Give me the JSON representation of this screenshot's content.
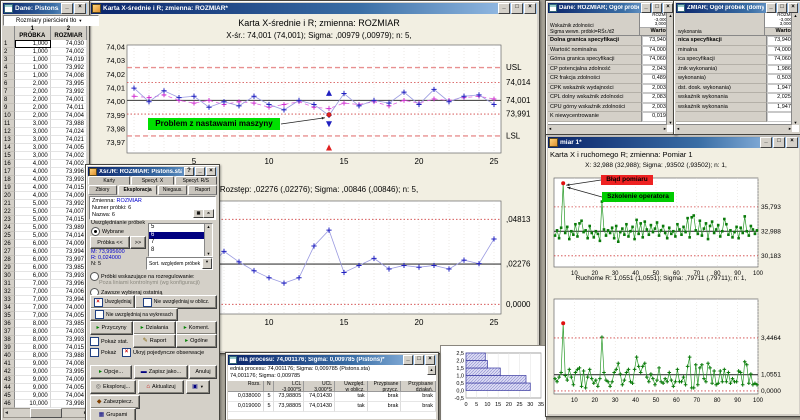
{
  "icons": {
    "minimize": "_",
    "maximize": "□",
    "close": "×",
    "help": "?",
    "up_arrow": "▲",
    "down_arrow": "▼",
    "left_arrow": "◄",
    "right_arrow": "►",
    "dropdown_arrow": "▼",
    "green_action": "▸",
    "pencil": "✎",
    "disk": "▬",
    "update": "⌂",
    "explore": "◎",
    "lock": "◆",
    "check": "×"
  },
  "colors": {
    "titlebar": "#0a246a",
    "series_blue": "#2020c0",
    "series_magenta": "#d030d0",
    "series_green": "#0a7a0a",
    "limit_red": "#d04040",
    "spec_red": "#e89090",
    "annotation_green": "#00e000",
    "annotation_red": "#ee2222"
  },
  "data_window": {
    "title": "Dane: Pistons.sta ...",
    "sheet_header": "Rozmiary pierścieni tło",
    "columns": [
      {
        "num": "1",
        "name": "PRÓBKA"
      },
      {
        "num": "2",
        "name": "ROZMIAR"
      }
    ],
    "rows": [
      [
        "1",
        "1,000",
        "74,030"
      ],
      [
        "2",
        "1,000",
        "74,002"
      ],
      [
        "3",
        "1,000",
        "74,019"
      ],
      [
        "4",
        "1,000",
        "73,992"
      ],
      [
        "5",
        "1,000",
        "74,008"
      ],
      [
        "6",
        "2,000",
        "73,995"
      ],
      [
        "7",
        "2,000",
        "73,992"
      ],
      [
        "8",
        "2,000",
        "74,001"
      ],
      [
        "9",
        "2,000",
        "74,011"
      ],
      [
        "10",
        "2,000",
        "74,004"
      ],
      [
        "11",
        "3,000",
        "73,988"
      ],
      [
        "12",
        "3,000",
        "74,024"
      ],
      [
        "13",
        "3,000",
        "74,021"
      ],
      [
        "14",
        "3,000",
        "74,005"
      ],
      [
        "15",
        "3,000",
        "74,002"
      ],
      [
        "16",
        "4,000",
        "74,002"
      ],
      [
        "17",
        "4,000",
        "73,996"
      ],
      [
        "18",
        "4,000",
        "73,993"
      ],
      [
        "19",
        "4,000",
        "74,015"
      ],
      [
        "20",
        "4,000",
        "74,009"
      ],
      [
        "21",
        "5,000",
        "73,992"
      ],
      [
        "22",
        "5,000",
        "74,007"
      ],
      [
        "23",
        "5,000",
        "74,015"
      ],
      [
        "24",
        "5,000",
        "73,989"
      ],
      [
        "25",
        "5,000",
        "74,014"
      ],
      [
        "26",
        "6,000",
        "74,009"
      ],
      [
        "27",
        "6,000",
        "73,994"
      ],
      [
        "28",
        "6,000",
        "73,997"
      ],
      [
        "29",
        "6,000",
        "73,985"
      ],
      [
        "30",
        "6,000",
        "73,993"
      ],
      [
        "31",
        "7,000",
        "73,996"
      ],
      [
        "32",
        "7,000",
        "74,006"
      ],
      [
        "33",
        "7,000",
        "73,994"
      ],
      [
        "34",
        "7,000",
        "74,000"
      ],
      [
        "35",
        "7,000",
        "74,005"
      ],
      [
        "36",
        "8,000",
        "73,985"
      ],
      [
        "37",
        "8,000",
        "74,003"
      ],
      [
        "38",
        "8,000",
        "73,993"
      ],
      [
        "39",
        "8,000",
        "74,015"
      ],
      [
        "40",
        "8,000",
        "73,988"
      ],
      [
        "41",
        "9,000",
        "74,008"
      ],
      [
        "42",
        "9,000",
        "73,995"
      ],
      [
        "43",
        "9,000",
        "74,009"
      ],
      [
        "44",
        "9,000",
        "74,005"
      ],
      [
        "45",
        "9,000",
        "74,004"
      ],
      [
        "46",
        "10,000",
        "73,998"
      ]
    ]
  },
  "main_chart_window": {
    "title": "Karta X-średnie i R; zmienna:  ROZMIAR*"
  },
  "mr_window": {
    "title": "miar 1*"
  },
  "chart_data": [
    {
      "type": "line",
      "id": "xbar",
      "title": "Karta X-średnie i R; zmienna:  ROZMIAR",
      "subtitle": "X-śr.: 74,001 (74,001); Sigma: ,00979 (,00979); n: 5,",
      "annotation": "Problem z nastawami maszyny",
      "yticks": [
        "74,04",
        "74,03",
        "74,02",
        "74,01",
        "74,00",
        "73,99",
        "73,98",
        "73,97"
      ],
      "ytick_values": [
        74.04,
        74.03,
        74.02,
        74.01,
        74.0,
        73.99,
        73.98,
        73.97
      ],
      "xticks": [
        5,
        10,
        15,
        20,
        25
      ],
      "ylim": [
        73.9625,
        74.0415
      ],
      "lines": [
        {
          "label": "USL",
          "value": 74.025,
          "style": "dash"
        },
        {
          "label": "74,014",
          "value": 74.014,
          "style": "dot"
        },
        {
          "label": "74,001",
          "value": 74.001,
          "style": "solid"
        },
        {
          "label": "73,991",
          "value": 73.991,
          "style": "dot"
        },
        {
          "label": "LSL",
          "value": 73.975,
          "style": "dash"
        }
      ],
      "series": [
        {
          "name": "X-średnie",
          "values": [
            74.01,
            74.0,
            74.008,
            74.003,
            74.004,
            73.996,
            74.0,
            73.997,
            74.004,
            73.998,
            73.994,
            74.001,
            73.998,
            73.99,
            74.006,
            73.997,
            74.001,
            73.999,
            74.007,
            73.998,
            74.009,
            74.0,
            74.004,
            74.005,
            73.998
          ]
        },
        {
          "name": "X-średnie (przeliczone)",
          "values": [
            74.004,
            74.003,
            74.005,
            74.001,
            73.999,
            74.001,
            73.998,
            74.0,
            73.999,
            73.996,
            73.998,
            74.0,
            73.996,
            73.995,
            73.999,
            73.998,
            74.0,
            73.997,
            74.001,
            73.999,
            74.002,
            74.001,
            74.003,
            74.004,
            74.002
          ]
        }
      ],
      "outlier": {
        "sample": 14,
        "value": 73.9905
      },
      "flags": [
        {
          "sample": 14,
          "value": 74.0065,
          "marker": "tri-up",
          "color": "blue"
        },
        {
          "sample": 14,
          "value": 73.9835,
          "marker": "tri-down",
          "color": "blue"
        },
        {
          "sample": 14,
          "value": 73.9665,
          "marker": "tri-up",
          "color": "red"
        }
      ]
    },
    {
      "type": "line",
      "id": "rchart",
      "subtitle": "Rozstęp: ,02276 (,02276); Sigma: ,00846 (,00846); n: 5,",
      "xticks": [
        5,
        10,
        15,
        20,
        25
      ],
      "ylim": [
        -0.0055,
        0.0585
      ],
      "lines": [
        {
          "label": ",04813",
          "value": 0.04813,
          "style": "dot"
        },
        {
          "label": ",02276",
          "value": 0.02276,
          "style": "solid"
        },
        {
          "label": "0,0000",
          "value": 0.0,
          "style": "dot"
        }
      ],
      "values": [
        0.025,
        0.031,
        0.022,
        0.018,
        0.028,
        0.021,
        0.03,
        0.024,
        0.019,
        0.015,
        0.012,
        0.015,
        0.033,
        0.042,
        0.018,
        0.022,
        0.026,
        0.02,
        0.022,
        0.021,
        0.022,
        0.02,
        0.025,
        0.023,
        0.037
      ]
    },
    {
      "type": "line",
      "id": "individuals",
      "title": "Karta X i ruchomego R; zmienna:  Pomiar 1",
      "subtitle": "X: 32,988 (32,988); Sigma: ,93502 (,93502); n: 1,",
      "annotations": [
        {
          "text": "Błąd pomiaru",
          "bg": "red"
        },
        {
          "text": "Szkolenie operatora",
          "bg": "green"
        }
      ],
      "xticks": [
        10,
        20,
        30,
        40,
        50,
        60,
        70,
        80,
        90,
        100
      ],
      "ylim": [
        28.9,
        39.1
      ],
      "lines": [
        {
          "label": "35,793",
          "value": 35.793,
          "style": "dot"
        },
        {
          "label": "32,988",
          "value": 32.988,
          "style": "solid"
        },
        {
          "label": "30,183",
          "value": 30.183,
          "style": "dot"
        }
      ],
      "red_point_index": 4,
      "values": [
        32.5,
        33.1,
        32.2,
        33.4,
        38.5,
        32.8,
        33.5,
        32.1,
        33.0,
        32.6,
        33.8,
        32.4,
        33.9,
        34.2,
        32.9,
        33.1,
        32.2,
        33.6,
        32.8,
        32.3,
        33.0,
        32.7,
        31.9,
        36.4,
        33.2,
        32.5,
        33.1,
        32.8,
        33.4,
        32.2,
        33.6,
        31.8,
        32.9,
        33.3,
        32.6,
        33.8,
        32.4,
        33.0,
        33.5,
        32.1,
        34.3,
        32.7,
        33.9,
        32.3,
        34.1,
        33.2,
        32.6,
        33.7,
        32.9,
        33.3,
        34.0,
        32.5,
        33.1,
        33.6,
        32.8,
        32.2,
        33.4,
        32.7,
        33.0,
        32.4,
        33.8,
        33.2,
        32.6,
        33.5,
        32.9,
        34.5,
        32.3,
        34.6,
        34.8,
        33.1,
        32.7,
        34.2,
        32.5,
        33.3,
        33.9,
        32.1,
        33.6,
        34.1,
        32.8,
        33.2,
        33.7,
        32.4,
        33.0,
        34.4,
        33.8,
        32.6,
        33.1,
        32.3,
        32.9,
        33.5,
        32.2,
        33.4,
        32.8,
        34.7,
        33.0,
        32.5,
        33.6,
        33.2,
        32.7,
        33.1
      ]
    },
    {
      "type": "line",
      "id": "moving_r",
      "title": "Ruchome R: 1,0551 (1,0551); Sigma: ,79711 (,79711); n: 1,",
      "xticks": [
        10,
        20,
        30,
        40,
        50,
        60,
        70,
        80,
        90,
        100
      ],
      "ylim": [
        -0.2,
        5.98
      ],
      "lines": [
        {
          "label": "3,4464",
          "value": 3.4464,
          "style": "dot"
        },
        {
          "label": "1,0551",
          "value": 1.0551,
          "style": "solid"
        },
        {
          "label": "0,0000",
          "value": 0.0,
          "style": "dot"
        }
      ],
      "red_point_index": 4,
      "values": [
        0.8,
        0.6,
        0.9,
        1.2,
        4.4,
        1.0,
        0.7,
        1.4,
        0.9,
        0.4,
        1.2,
        1.4,
        1.5,
        0.3,
        1.3,
        0.2,
        0.9,
        1.4,
        0.8,
        0.5,
        0.7,
        0.3,
        0.8,
        3.5,
        1.2,
        0.7,
        0.6,
        0.3,
        0.6,
        1.2,
        1.4,
        1.8,
        1.1,
        0.4,
        0.7,
        1.2,
        1.4,
        0.6,
        0.5,
        1.4,
        2.2,
        1.6,
        1.2,
        1.6,
        1.8,
        0.9,
        0.6,
        1.1,
        0.8,
        0.4,
        0.7,
        1.5,
        0.6,
        0.5,
        0.8,
        0.6,
        1.2,
        0.7,
        0.3,
        0.6,
        1.4,
        0.6,
        0.6,
        0.9,
        0.4,
        1.6,
        2.2,
        0.2,
        0.2,
        1.7,
        0.4,
        1.5,
        1.7,
        0.8,
        0.6,
        1.8,
        1.5,
        0.5,
        1.3,
        0.4,
        0.5,
        1.3,
        0.6,
        1.4,
        0.6,
        1.2,
        0.5,
        0.8,
        0.6,
        0.6,
        1.3,
        1.2,
        0.4,
        1.9,
        1.7,
        0.5,
        1.1,
        0.4,
        0.5,
        0.4
      ]
    },
    {
      "type": "bar",
      "id": "histogram",
      "orientation": "horizontal",
      "bin_edges": [
        0,
        0.5,
        1.0,
        1.5,
        2.0,
        2.5
      ],
      "counts": [
        30,
        28,
        16,
        10,
        9
      ],
      "xticks": [
        0,
        5,
        10,
        15,
        20,
        25,
        30,
        35
      ],
      "yticks": [
        "2,5",
        "2,0",
        "1,5",
        "1,0",
        "0,5",
        "0,0",
        "-0,5"
      ],
      "ytick_values": [
        2.5,
        2.0,
        1.5,
        1.0,
        0.5,
        0.0,
        -0.5
      ],
      "xlim": [
        0,
        35
      ],
      "ylim": [
        -0.5,
        2.5
      ]
    }
  ],
  "dialog": {
    "title": "Xśr./R: ROZMIAR: Pistons.sta",
    "tabs_row1": [
      "Karty",
      "Specyf. X",
      "Specyf. R/S"
    ],
    "tabs_row2": [
      "Zbiory",
      "Eksploracja",
      "Niegaus.",
      "Raport"
    ],
    "active_tab": "Eksploracja",
    "info": {
      "zmienna_label": "Zmienna:",
      "zmienna": "ROZMIAR",
      "numer": "Numer próbki: 6",
      "nazwa": "Nazwa: 6"
    },
    "group_label": "Uwzględnianie próbek",
    "radio_wybrane": "Wybrane",
    "probka_btn": "Próbka <<",
    "next_btn": ">>",
    "list_items": [
      "5",
      "6",
      "7",
      "8"
    ],
    "list_selected": "6",
    "m": "M: 73,995600",
    "r": "R: 0,024000",
    "n": "N: 5",
    "sort_dropdown": "Sort. względem próbek",
    "radio_rozreg": "Próbki wskazujące na rozregulowanie:",
    "rozreg_sub": "Poza liniami kontrolnymi (wg konfiguracji)",
    "radio_ostatnia": "Zawsze wybieraj ostatnią",
    "btn_uwzgledniaj": "Uwzględniaj",
    "btn_nie_oblicz": "Nie uwzględniaj w oblicz.",
    "btn_nie_wykres": "Nie uwzględniaj na wykresach",
    "btn_przyczyny": "Przyczyny",
    "btn_dzialania": "Działania",
    "btn_koment": "Koment.",
    "chk_pokaz_stat": "Pokaż stat.",
    "btn_raport": "Raport",
    "btn_ogolne": "Ogólne",
    "chk_pokaz": "Pokaż",
    "chk_ukryj": "Ukryj pojedyncze obserwacje",
    "btn_opcje": "Opcje...",
    "btn_zapisz": "Zapisz jako...",
    "btn_anuluj": "Anuluj",
    "btn_eksploruj": "Eksploruj...",
    "btn_aktualizuj": "Aktualizuj",
    "btn_zabezpiecz": "Zabezpiecz.",
    "btn_grupami": "Grupami"
  },
  "stats_window_1": {
    "title": "Dane: ROZMIAR; Ogół próbek (domy...",
    "corner_lines": [
      "ROZMIAR",
      "-3,000 *S",
      "3,000 *Si"
    ],
    "header_lines": [
      "Wskaźnik zdolności",
      "Sigma wewn. próbki=RŚr./d2"
    ],
    "value_header": "Wartość",
    "rows": [
      [
        "Dolna granica specyfikacji",
        "73,94000"
      ],
      [
        "Wartość nominalna",
        "74,00000"
      ],
      [
        "Górna granica specyfikacji",
        "74,06000"
      ],
      [
        "CP potencjalna zdolność",
        "2,04387"
      ],
      [
        "CR frakcja zdolności",
        "0,48927"
      ],
      [
        "CPK wskaźnik wydajności",
        "2,00381"
      ],
      [
        "CPL dolny wskaźnik zdolności",
        "2,08393"
      ],
      [
        "CPU górny wskaźnik zdolności",
        "2,00381"
      ],
      [
        "K niewycentrowanie",
        "0,01960"
      ]
    ]
  },
  "stats_window_2": {
    "title": "ZMIAR; Ogół próbek (domyś...",
    "corner_lines": [
      "ROZMIAR",
      "-3,000 *S",
      "3,000 *Si"
    ],
    "header_lines": [
      "",
      "wykonania"
    ],
    "value_header": "Wartość",
    "rows": [
      [
        "nica specyfikacji",
        "73,94000"
      ],
      [
        "minalna",
        "74,00000"
      ],
      [
        "ica specyfikacji",
        "74,06000"
      ],
      [
        "żnik wykonania)",
        "1,98610"
      ],
      [
        "wykonania)",
        "0,50350"
      ],
      [
        "dst. dosk. wykonania)",
        "1,94718"
      ],
      [
        "wskaźnik wykonania",
        "2,02503"
      ],
      [
        "wskaźnik wykonania",
        "1,94718"
      ],
      [
        "",
        ""
      ]
    ]
  },
  "capability_window": {
    "title": "nia procesu: 74,001176; Sigma: 0,009785 (Pistons)*",
    "line1": "ednia procesu: 74,001176; Sigma: 0,009785 (Pistons.sta)",
    "line2": "74,001176; Sigma: 0,009785",
    "col_headers": [
      [
        "Rozs.",
        ""
      ],
      [
        "N",
        ""
      ],
      [
        "LCL",
        "-3,000*S"
      ],
      [
        "UCL",
        "3,000*S"
      ],
      [
        "Uwzględ.",
        "w oblicz."
      ],
      [
        "Przypisane",
        "przycz."
      ],
      [
        "Przypisane",
        "działań."
      ]
    ],
    "rows": [
      [
        "0,038000",
        "5",
        "73,98805",
        "74,01430",
        "tak",
        "brak",
        "brak"
      ],
      [
        "0,019000",
        "5",
        "73,98805",
        "74,01430",
        "tak",
        "brak",
        "brak"
      ]
    ]
  }
}
